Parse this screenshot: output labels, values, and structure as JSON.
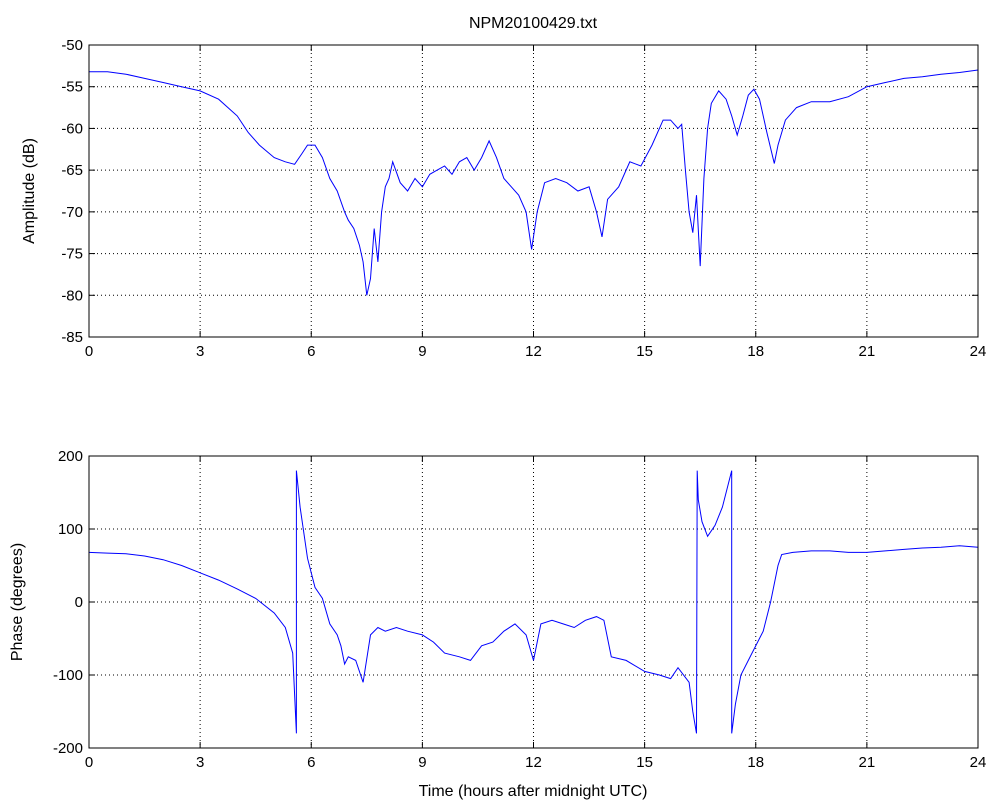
{
  "chart_data": [
    {
      "type": "line",
      "title": "NPM20100429.txt",
      "xlabel": "",
      "ylabel": "Amplitude (dB)",
      "xlim": [
        0,
        24
      ],
      "ylim": [
        -85,
        -50
      ],
      "xticks": [
        "0",
        "3",
        "6",
        "9",
        "12",
        "15",
        "18",
        "21",
        "24"
      ],
      "yticks": [
        "-85",
        "-80",
        "-75",
        "-70",
        "-65",
        "-60",
        "-55",
        "-50"
      ],
      "grid": true,
      "series_color": "#0000ff",
      "series": [
        {
          "x": [
            0,
            0.5,
            1,
            1.5,
            2,
            2.5,
            3,
            3.5,
            4,
            4.3,
            4.6,
            5.0,
            5.3,
            5.55,
            5.75,
            5.9,
            6.1,
            6.3,
            6.5,
            6.7,
            6.9,
            7.0,
            7.15,
            7.3,
            7.4,
            7.5,
            7.6,
            7.7,
            7.8,
            7.9,
            8.0,
            8.1,
            8.2,
            8.4,
            8.6,
            8.8,
            9.0,
            9.2,
            9.4,
            9.6,
            9.8,
            10.0,
            10.2,
            10.4,
            10.6,
            10.8,
            11.0,
            11.2,
            11.4,
            11.6,
            11.8,
            11.95,
            12.1,
            12.3,
            12.6,
            12.9,
            13.2,
            13.5,
            13.7,
            13.85,
            14.0,
            14.3,
            14.6,
            14.9,
            15.2,
            15.5,
            15.7,
            15.9,
            16.0,
            16.1,
            16.2,
            16.3,
            16.4,
            16.5,
            16.6,
            16.7,
            16.8,
            17.0,
            17.2,
            17.35,
            17.5,
            17.65,
            17.8,
            17.95,
            18.1,
            18.3,
            18.5,
            18.6,
            18.8,
            19.1,
            19.5,
            20.0,
            20.5,
            21.0,
            21.5,
            22.0,
            22.5,
            23.0,
            23.5,
            24.0
          ],
          "y": [
            -53.2,
            -53.2,
            -53.5,
            -54.0,
            -54.5,
            -55.0,
            -55.5,
            -56.5,
            -58.5,
            -60.5,
            -62.0,
            -63.5,
            -64.0,
            -64.3,
            -63.0,
            -62.0,
            -62.0,
            -63.5,
            -66.0,
            -67.5,
            -70.0,
            -71.0,
            -72.0,
            -74.0,
            -76.0,
            -80.0,
            -78.0,
            -72.0,
            -76.0,
            -70.0,
            -67.0,
            -66.0,
            -64.0,
            -66.5,
            -67.5,
            -66.0,
            -67.0,
            -65.5,
            -65.0,
            -64.5,
            -65.5,
            -64.0,
            -63.5,
            -65.0,
            -63.5,
            -61.5,
            -63.5,
            -66.0,
            -67.0,
            -68.0,
            -70.0,
            -74.5,
            -70.0,
            -66.5,
            -66.0,
            -66.5,
            -67.5,
            -67.0,
            -70.0,
            -73.0,
            -68.5,
            -67.0,
            -64.0,
            -64.5,
            -62.0,
            -59.0,
            -59.0,
            -60.0,
            -59.5,
            -65.0,
            -70.0,
            -72.5,
            -68.0,
            -76.5,
            -66.0,
            -60.0,
            -57.0,
            -55.5,
            -56.5,
            -58.5,
            -60.8,
            -58.5,
            -56.0,
            -55.3,
            -56.5,
            -60.5,
            -64.2,
            -62.0,
            -59.0,
            -57.5,
            -56.8,
            -56.8,
            -56.2,
            -55.0,
            -54.5,
            -54.0,
            -53.8,
            -53.5,
            -53.3,
            -53.0
          ]
        }
      ]
    },
    {
      "type": "line",
      "title": "",
      "xlabel": "Time (hours after midnight UTC)",
      "ylabel": "Phase (degrees)",
      "xlim": [
        0,
        24
      ],
      "ylim": [
        -200,
        200
      ],
      "xticks": [
        "0",
        "3",
        "6",
        "9",
        "12",
        "15",
        "18",
        "21",
        "24"
      ],
      "yticks": [
        "-200",
        "-100",
        "0",
        "100",
        "200"
      ],
      "grid": true,
      "series_color": "#0000ff",
      "series": [
        {
          "x": [
            0,
            0.5,
            1,
            1.5,
            2,
            2.5,
            3,
            3.5,
            4,
            4.5,
            5.0,
            5.3,
            5.5,
            5.6,
            5.6,
            5.7,
            5.9,
            6.1,
            6.3,
            6.5,
            6.7,
            6.8,
            6.9,
            7.0,
            7.2,
            7.4,
            7.6,
            7.8,
            8.0,
            8.3,
            8.6,
            9.0,
            9.3,
            9.6,
            10.0,
            10.3,
            10.6,
            10.9,
            11.2,
            11.5,
            11.8,
            12.0,
            12.2,
            12.5,
            12.8,
            13.1,
            13.4,
            13.7,
            13.9,
            14.1,
            14.5,
            15.0,
            15.4,
            15.7,
            15.9,
            16.2,
            16.3,
            16.4,
            16.42,
            16.45,
            16.55,
            16.7,
            16.9,
            17.1,
            17.35,
            17.35,
            17.45,
            17.6,
            17.9,
            18.2,
            18.4,
            18.6,
            18.7,
            19.0,
            19.5,
            20.0,
            20.5,
            21.0,
            21.5,
            22.0,
            22.5,
            23.0,
            23.5,
            24.0
          ],
          "y": [
            68,
            67,
            66,
            63,
            58,
            50,
            40,
            30,
            18,
            5,
            -15,
            -35,
            -70,
            -180,
            180,
            130,
            60,
            20,
            5,
            -30,
            -45,
            -60,
            -85,
            -75,
            -80,
            -110,
            -45,
            -35,
            -40,
            -35,
            -40,
            -45,
            -55,
            -70,
            -75,
            -80,
            -60,
            -55,
            -40,
            -30,
            -45,
            -80,
            -30,
            -25,
            -30,
            -35,
            -25,
            -20,
            -25,
            -75,
            -80,
            -95,
            -100,
            -105,
            -90,
            -110,
            -150,
            -180,
            180,
            140,
            110,
            90,
            105,
            130,
            180,
            -180,
            -140,
            -100,
            -70,
            -40,
            0,
            50,
            65,
            68,
            70,
            70,
            68,
            68,
            70,
            72,
            74,
            75,
            77,
            75
          ]
        }
      ]
    }
  ]
}
